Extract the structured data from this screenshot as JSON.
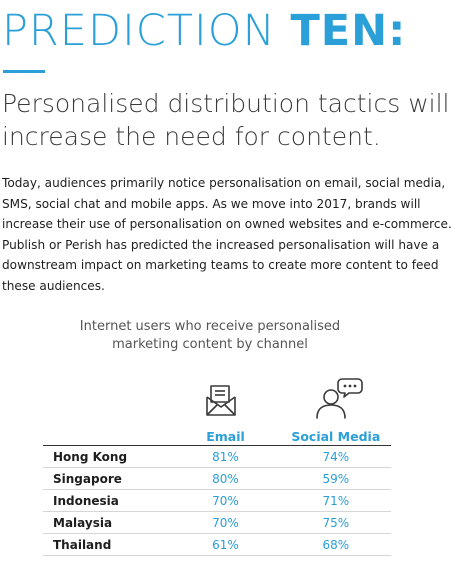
{
  "headline": {
    "part1": "PREDICTION",
    "part2": "TEN:"
  },
  "subheading": "Personalised distribution tactics will increase the need for content.",
  "body": "Today, audiences primarily notice personalisation on email, social media, SMS, social chat and mobile apps. As we move into 2017, brands will increase their use of personalisation on owned websites and e-commerce. Publish or Perish has predicted the increased personalisation will have a downstream impact on marketing teams to create more content to feed these audiences.",
  "table": {
    "caption": "Internet users who receive personalised marketing content by channel",
    "columns": [
      "Email",
      "Social Media"
    ],
    "icons": [
      "envelope-icon",
      "social-chat-icon"
    ],
    "rows": [
      {
        "country": "Hong Kong",
        "email": "81%",
        "social": "74%"
      },
      {
        "country": "Singapore",
        "email": "80%",
        "social": "59%"
      },
      {
        "country": "Indonesia",
        "email": "70%",
        "social": "71%"
      },
      {
        "country": "Malaysia",
        "email": "70%",
        "social": "75%"
      },
      {
        "country": "Thailand",
        "email": "61%",
        "social": "68%"
      }
    ]
  },
  "colors": {
    "accent": "#2a9fd8",
    "text": "#222222"
  }
}
